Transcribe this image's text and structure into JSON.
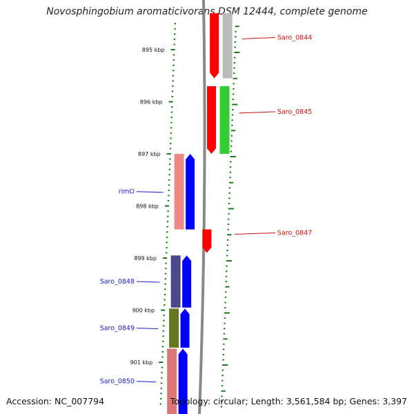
{
  "title": "Novosphingobium aromaticivorans DSM 12444, complete genome",
  "positions": [
    {
      "label": "895 kbp",
      "kbp": 895
    },
    {
      "label": "896 kbp",
      "kbp": 896
    },
    {
      "label": "897 kbp",
      "kbp": 897
    },
    {
      "label": "898 kbp",
      "kbp": 898
    },
    {
      "label": "899 kbp",
      "kbp": 899
    },
    {
      "label": "900 kbp",
      "kbp": 900
    },
    {
      "label": "901 kbp",
      "kbp": 901
    }
  ],
  "genes": [
    {
      "name": "Saro_0844",
      "start_kbp": 894.3,
      "end_kbp": 895.55,
      "strand": "reverse",
      "color": "#ff0000",
      "labeled": true
    },
    {
      "name": "Saro_0845",
      "start_kbp": 895.7,
      "end_kbp": 897.0,
      "strand": "reverse",
      "color": "#ff0000",
      "labeled": true
    },
    {
      "name": "Saro_0847",
      "start_kbp": 898.45,
      "end_kbp": 898.9,
      "strand": "reverse",
      "color": "#ff0000",
      "labeled": true
    },
    {
      "name": "rimO",
      "start_kbp": 897.0,
      "end_kbp": 898.45,
      "strand": "forward",
      "color": "#0000ff",
      "labeled": true
    },
    {
      "name": "Saro_0848",
      "start_kbp": 898.95,
      "end_kbp": 899.95,
      "strand": "forward",
      "color": "#0000ff",
      "labeled": true
    },
    {
      "name": "Saro_0849",
      "start_kbp": 899.97,
      "end_kbp": 900.72,
      "strand": "forward",
      "color": "#0000ff",
      "labeled": true
    },
    {
      "name": "Saro_0850",
      "start_kbp": 900.74,
      "end_kbp": 902.0,
      "strand": "forward",
      "color": "#0000ff",
      "labeled": true
    }
  ],
  "cds_bars": [
    {
      "for": "Saro_0844",
      "start_kbp": 894.3,
      "end_kbp": 895.55,
      "color": "#bbbbbb"
    },
    {
      "for": "Saro_0845",
      "start_kbp": 895.7,
      "end_kbp": 897.0,
      "color": "#33cc33"
    },
    {
      "for": "rimO",
      "start_kbp": 897.0,
      "end_kbp": 898.45,
      "color": "#ee8888"
    },
    {
      "for": "Saro_0848",
      "start_kbp": 898.95,
      "end_kbp": 899.95,
      "color": "#4a4a8a"
    },
    {
      "for": "Saro_0849",
      "start_kbp": 899.97,
      "end_kbp": 900.72,
      "color": "#667722"
    },
    {
      "for": "Saro_0850",
      "start_kbp": 900.74,
      "end_kbp": 902.0,
      "color": "#dd7777"
    }
  ],
  "colors": {
    "backbone": "#888888",
    "tick": "#1a7a1a",
    "forward_label": "#1a1acc",
    "reverse_label": "#cc1111"
  },
  "footer": {
    "accession": "Accession: NC_007794",
    "summary": "Topology: circular; Length: 3,561,584 bp; Genes: 3,397"
  }
}
